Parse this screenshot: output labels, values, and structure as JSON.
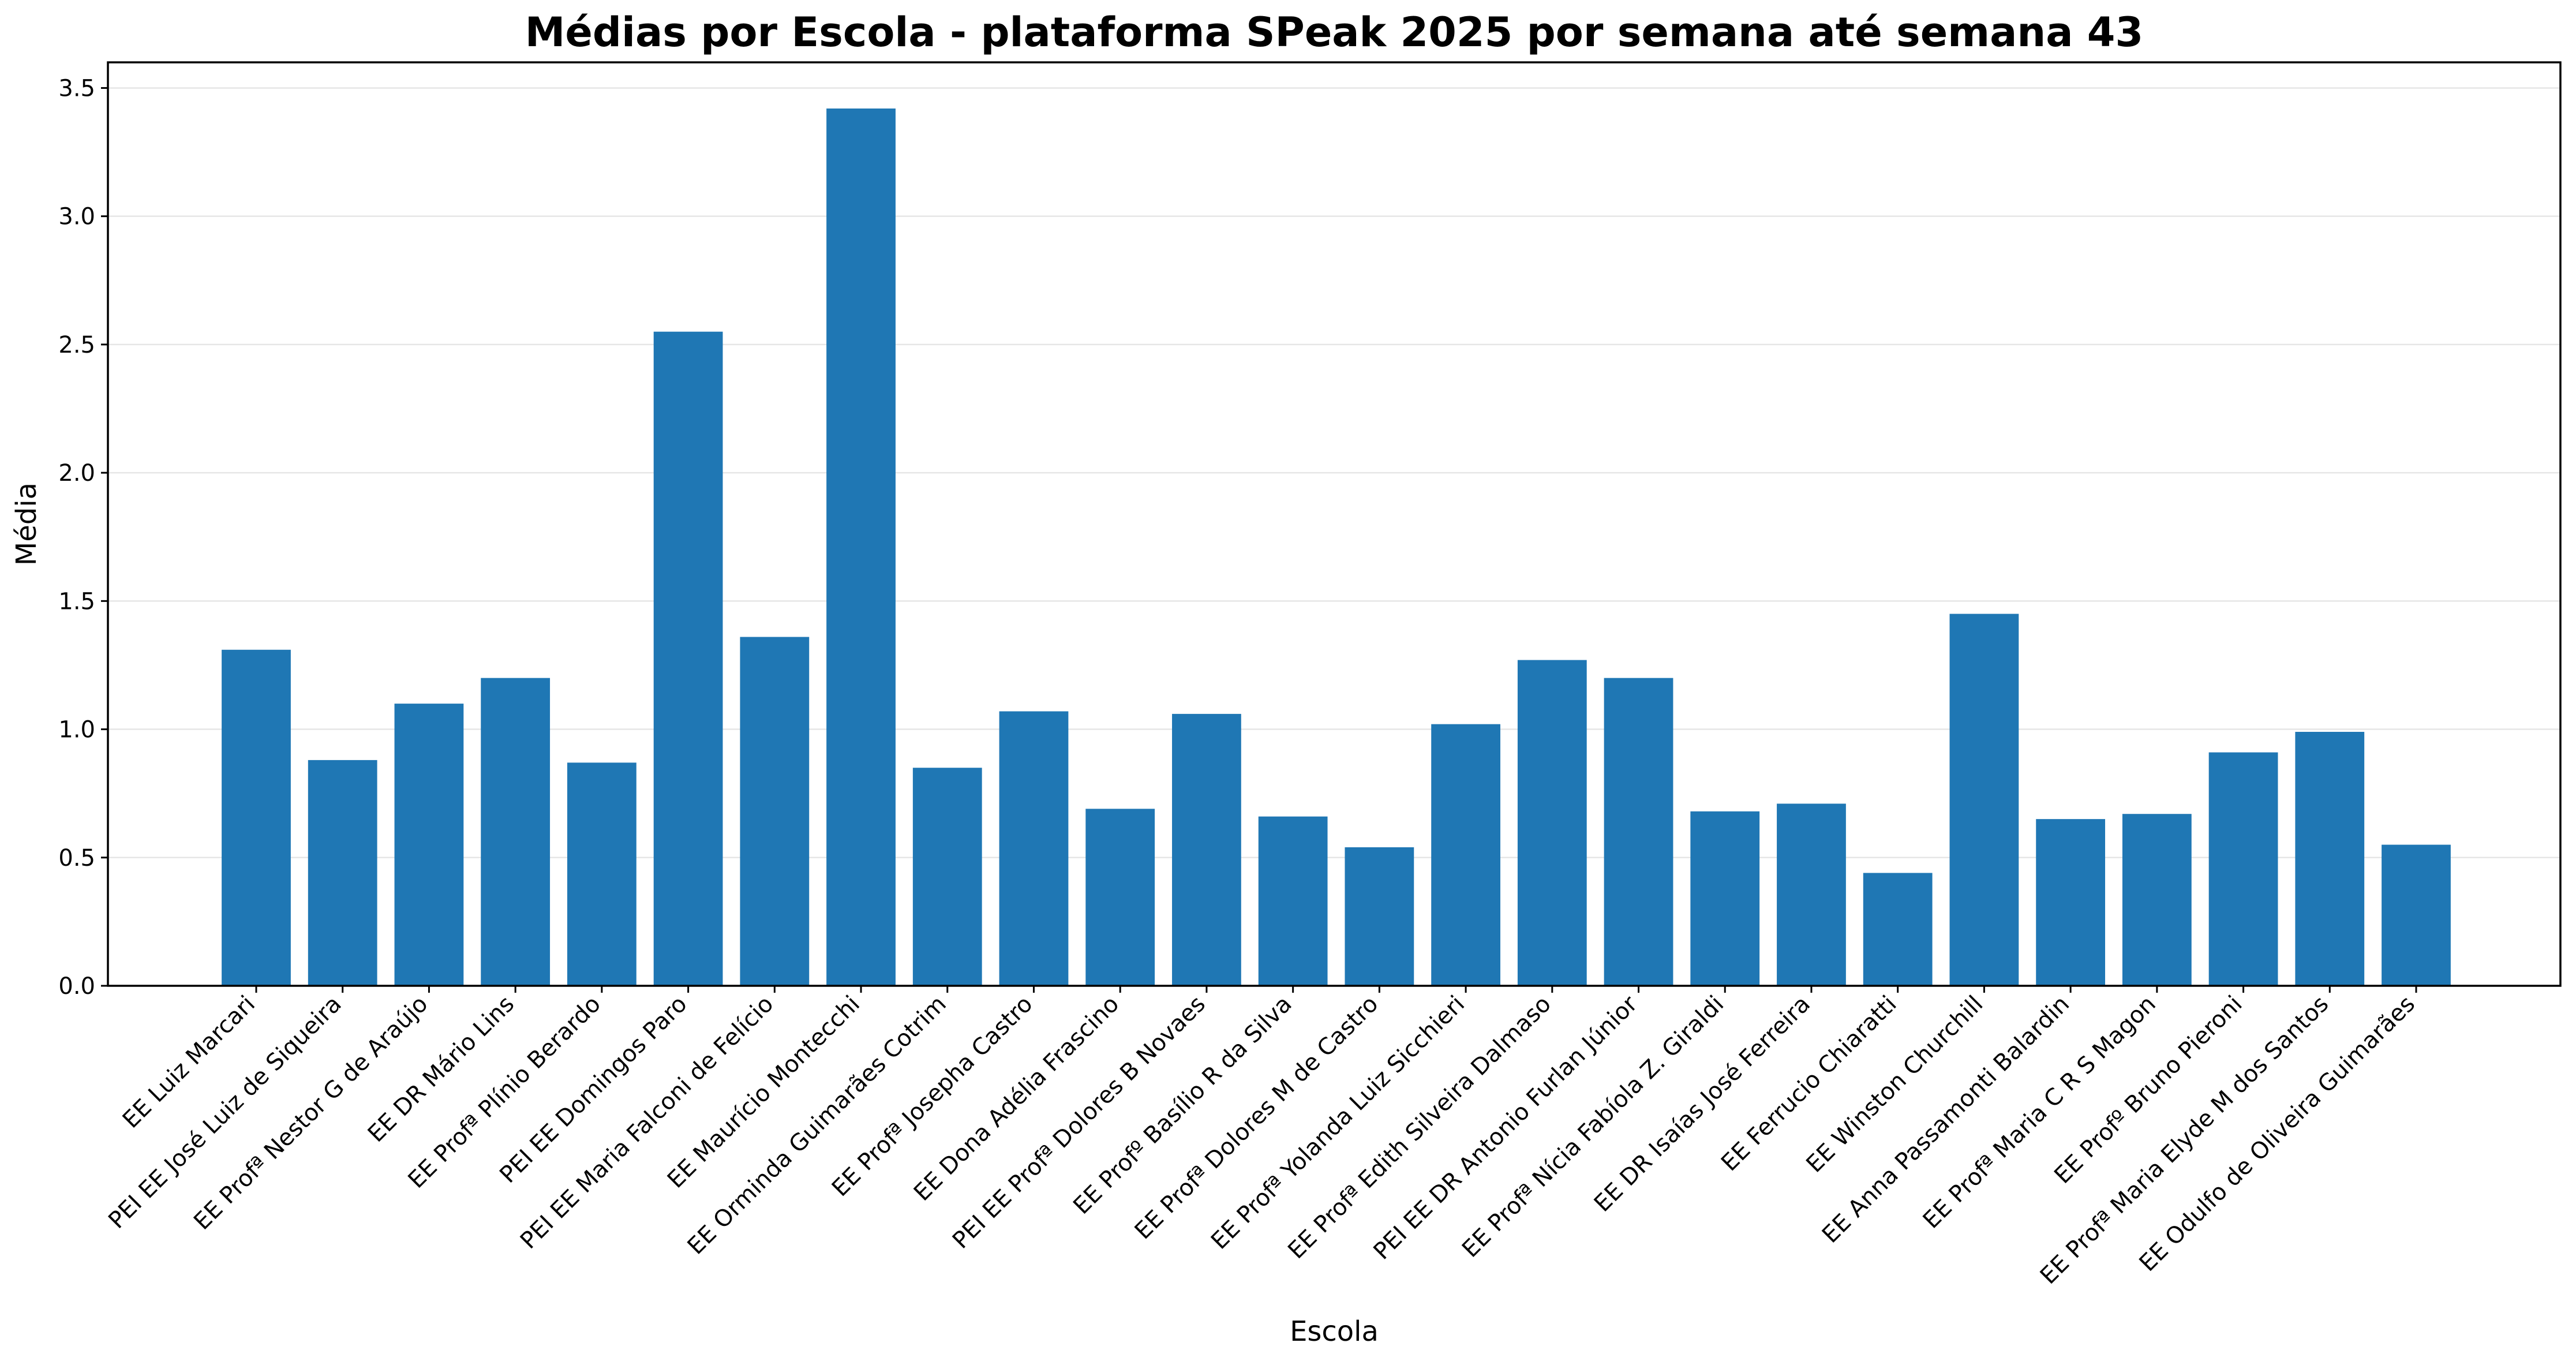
{
  "chart_data": {
    "type": "bar",
    "title": "Médias por Escola - plataforma SPeak 2025 por semana até semana 43",
    "xlabel": "Escola",
    "ylabel": "Média",
    "ylim": [
      0,
      3.6
    ],
    "yticks": [
      "0.0",
      "0.5",
      "1.0",
      "1.5",
      "2.0",
      "2.5",
      "3.0",
      "3.5"
    ],
    "grid": "horizontal",
    "bar_color": "#1f77b4",
    "categories": [
      "EE Luiz Marcari",
      "PEI EE José Luiz de Siqueira",
      "EE Profª Nestor G de Araújo",
      "EE DR Mário Lins",
      "EE Profª Plínio Berardo",
      "PEI EE Domingos Paro",
      "PEI EE Maria Falconi de Felício",
      "EE Maurício Montecchi",
      "EE Orminda Guimarães Cotrim",
      "EE Profª Josepha Castro",
      "EE Dona Adélia Frascino",
      "PEI EE Profª Dolores B Novaes",
      "EE Profº Basílio R da Silva",
      "EE Profª Dolores M de Castro",
      "EE Profª Yolanda Luiz Sicchieri",
      "EE Profª Edith Silveira Dalmaso",
      "PEI EE DR Antonio Furlan Júnior",
      "EE Profª Nícia Fabíola Z. Giraldi",
      "EE DR Isaías José Ferreira",
      "EE Ferrucio Chiaratti",
      "EE Winston Churchill",
      "EE Anna Passamonti Balardin",
      "EE Profª Maria C R S Magon",
      "EE Profº Bruno Pieroni",
      "EE Profª Maria Elyde M dos Santos",
      "EE Odulfo de Oliveira Guimarães"
    ],
    "values": [
      1.31,
      0.88,
      1.1,
      1.2,
      0.87,
      2.55,
      1.36,
      3.42,
      0.85,
      1.07,
      0.69,
      1.06,
      0.66,
      0.54,
      1.02,
      1.27,
      1.2,
      0.68,
      0.71,
      0.44,
      1.45,
      0.65,
      0.67,
      0.91,
      0.99,
      0.55
    ]
  }
}
